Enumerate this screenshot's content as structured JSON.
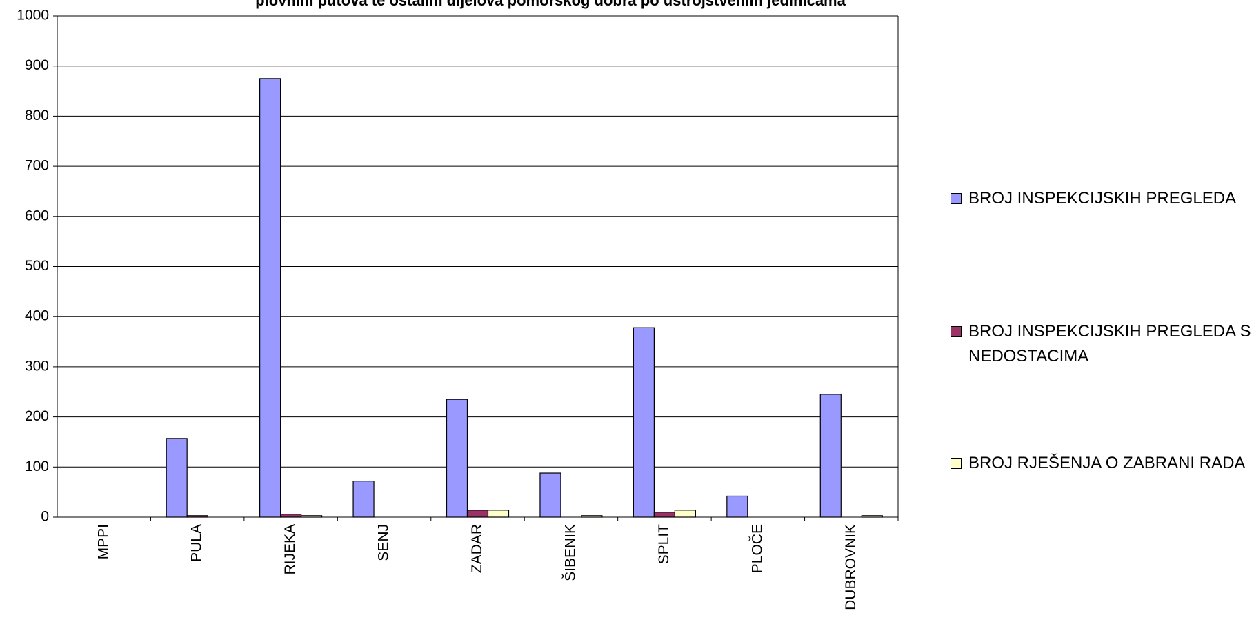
{
  "chart_data": {
    "type": "bar",
    "title": "plovnim putova te ostalim dijelova pomorskog dobra po ustrojstvenim jedinicama",
    "categories": [
      "MPPI",
      "PULA",
      "RIJEKA",
      "SENJ",
      "ZADAR",
      "ŠIBENIK",
      "SPLIT",
      "PLOČE",
      "DUBROVNIK"
    ],
    "series": [
      {
        "name": "BROJ INSPEKCIJSKIH PREGLEDA",
        "color": "#9999ff",
        "values": [
          0,
          157,
          875,
          72,
          235,
          88,
          378,
          42,
          245
        ]
      },
      {
        "name": "BROJ INSPEKCIJSKIH PREGLEDA S NEDOSTACIMA",
        "color": "#993366",
        "values": [
          0,
          3,
          6,
          0,
          14,
          0,
          10,
          0,
          0
        ]
      },
      {
        "name": "BROJ RJEŠENJA O ZABRANI RADA",
        "color": "#ffffcc",
        "values": [
          0,
          0,
          3,
          0,
          14,
          3,
          14,
          0,
          3
        ]
      }
    ],
    "ylim": [
      0,
      1000
    ],
    "yticks": [
      0,
      100,
      200,
      300,
      400,
      500,
      600,
      700,
      800,
      900,
      1000
    ],
    "grid": true,
    "legend": "right"
  }
}
